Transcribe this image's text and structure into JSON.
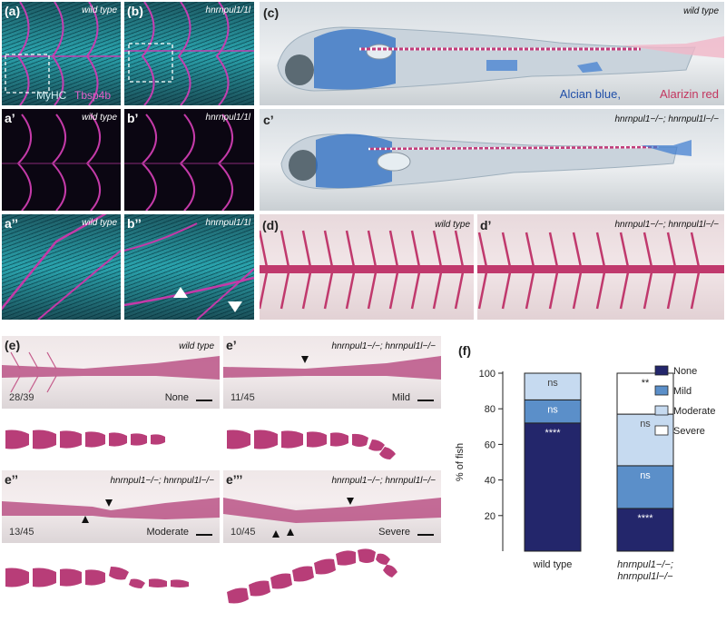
{
  "panel_a": {
    "label": "(a)",
    "genotype": "wild type",
    "stain_myhc": "MyHC",
    "stain_tbsp": "Tbsp4b"
  },
  "panel_b": {
    "label": "(b)",
    "genotype": "hnrnpul1/1l"
  },
  "panel_a1": {
    "label": "a’",
    "genotype": "wild type"
  },
  "panel_b1": {
    "label": "b’",
    "genotype": "hnrnpul1/1l"
  },
  "panel_a2": {
    "label": "a’’",
    "genotype": "wild type"
  },
  "panel_b2": {
    "label": "b’’",
    "genotype": "hnrnpul1/1l"
  },
  "panel_c": {
    "label": "(c)",
    "genotype": "wild type",
    "stain_blue": "Alcian blue,",
    "stain_red": "Alarizin red"
  },
  "panel_c1": {
    "label": "c’",
    "genotype": "hnrnpul1−/−; hnrnpul1l−/−"
  },
  "panel_d": {
    "label": "(d)",
    "genotype": "wild type"
  },
  "panel_d1": {
    "label": "d’",
    "genotype": "hnrnpul1−/−; hnrnpul1l−/−"
  },
  "panel_e": {
    "label": "(e)",
    "genotype": "wild type",
    "count": "28/39",
    "severity": "None"
  },
  "panel_e1": {
    "label": "e’",
    "genotype": "hnrnpul1−/−; hnrnpul1l−/−",
    "count": "11/45",
    "severity": "Mild"
  },
  "panel_e2": {
    "label": "e’’",
    "genotype": "hnrnpul1−/−; hnrnpul1l−/−",
    "count": "13/45",
    "severity": "Moderate"
  },
  "panel_e3": {
    "label": "e’’’",
    "genotype": "hnrnpul1−/−; hnrnpul1l−/−",
    "count": "10/45",
    "severity": "Severe"
  },
  "panel_f": {
    "label": "(f)"
  },
  "colors": {
    "none": "#23266b",
    "mild": "#5b8fc9",
    "moderate": "#c6daf0",
    "severe": "#ffffff",
    "vertebra": "#b83d78",
    "cyan": "#2bc4cc",
    "magenta": "#c43aa8"
  },
  "chart_data": {
    "type": "bar",
    "stacked": true,
    "ylabel": "% of fish",
    "ylim": [
      0,
      100
    ],
    "yticks": [
      20,
      40,
      60,
      80,
      100
    ],
    "categories": [
      "wild type",
      "hnrnpul1−/−;\nhnrnpul1l−/−"
    ],
    "series": [
      {
        "name": "None",
        "values": [
          72,
          24
        ],
        "color": "#23266b",
        "annotations": [
          "****",
          "****"
        ],
        "ann_color": "#ffffff"
      },
      {
        "name": "Mild",
        "values": [
          13,
          24
        ],
        "color": "#5b8fc9",
        "annotations": [
          "ns",
          "ns"
        ],
        "ann_color": "#ffffff"
      },
      {
        "name": "Moderate",
        "values": [
          15,
          29
        ],
        "color": "#c6daf0",
        "annotations": [
          "ns",
          "ns"
        ],
        "ann_color": "#444444"
      },
      {
        "name": "Severe",
        "values": [
          0,
          23
        ],
        "color": "#ffffff",
        "annotations": [
          "",
          "**"
        ],
        "ann_color": "#222222"
      }
    ],
    "legend_position": "right",
    "grid": false
  }
}
